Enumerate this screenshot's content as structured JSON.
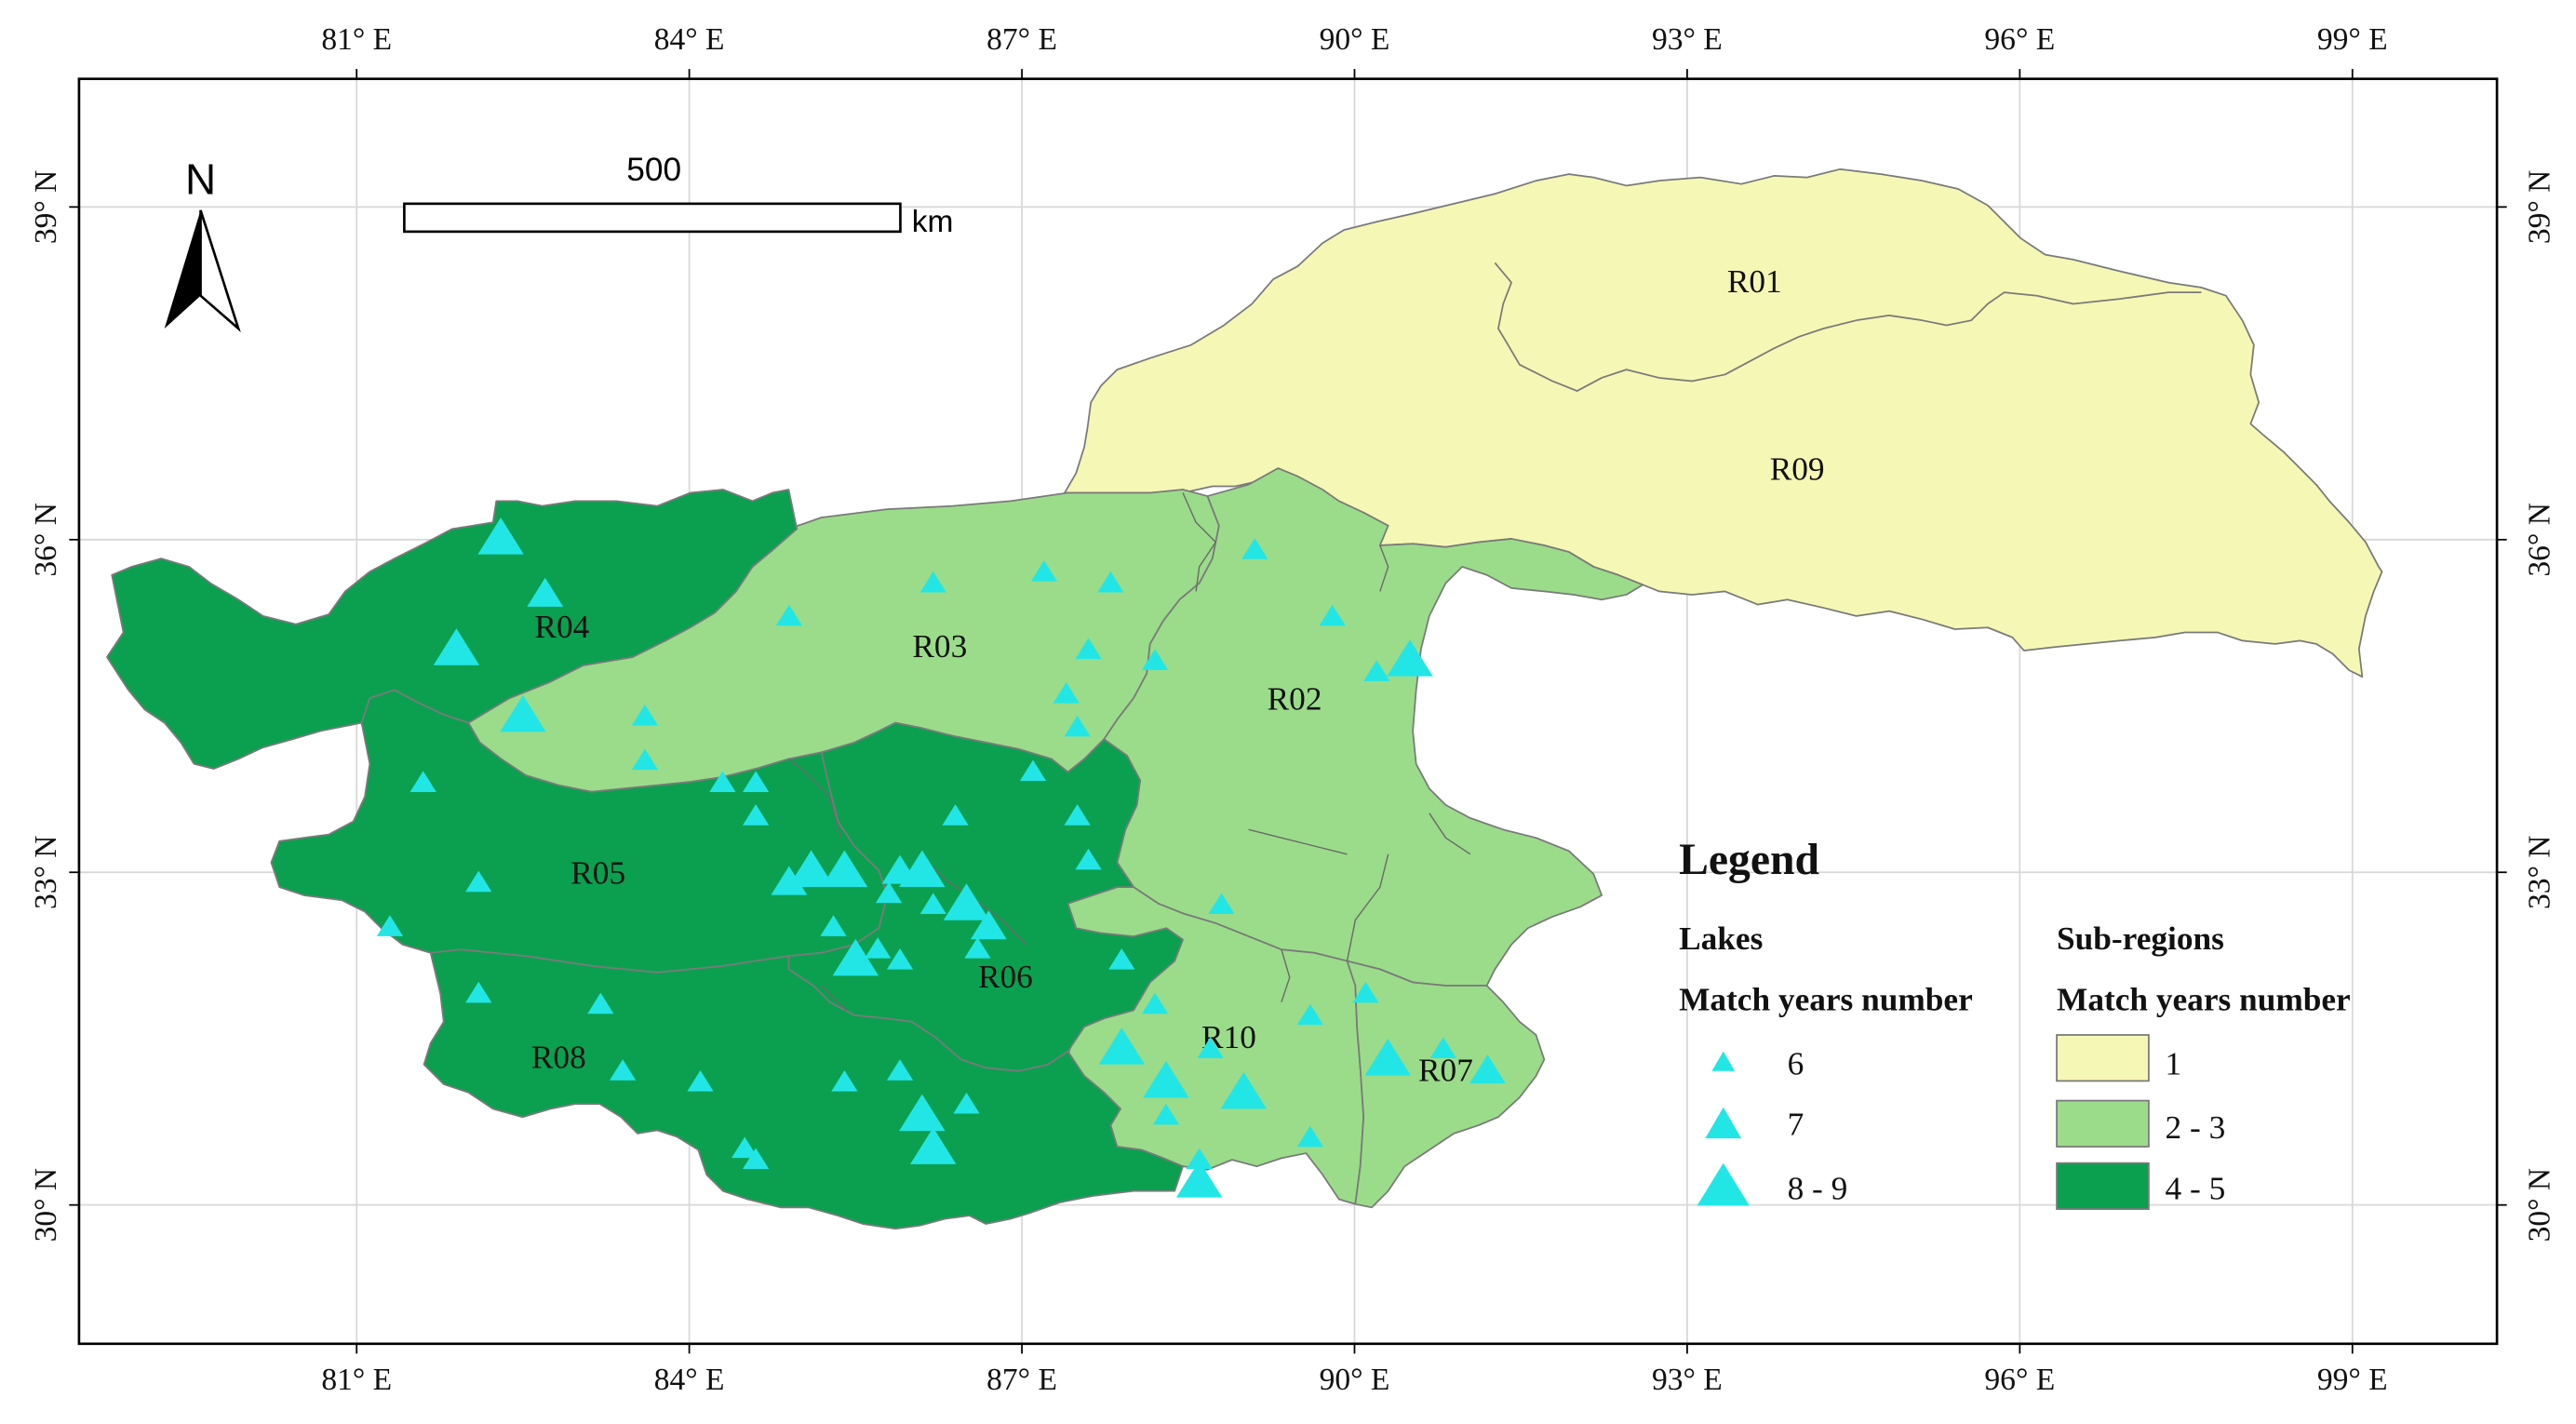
{
  "map": {
    "colors": {
      "class_1": "#f5f7b5",
      "class_2_3": "#9bdc8a",
      "class_4_5": "#0aa050",
      "lake": "#22e6e6",
      "border": "#7a7a7a",
      "frame": "#000000",
      "grid": "#d8d8d8"
    },
    "graticule": {
      "lon_labels": [
        "81° E",
        "84° E",
        "87° E",
        "90° E",
        "93° E",
        "96° E",
        "99° E"
      ],
      "lat_labels": [
        "39° N",
        "36° N",
        "33° N",
        "30° N"
      ]
    },
    "north_arrow": {
      "label": "N"
    },
    "scale_bar": {
      "value_label": "500",
      "unit_label": "km"
    },
    "regions": [
      {
        "id": "R01",
        "label": "R01",
        "class": "1"
      },
      {
        "id": "R09",
        "label": "R09",
        "class": "1"
      },
      {
        "id": "R03",
        "label": "R03",
        "class": "2 - 3"
      },
      {
        "id": "R02",
        "label": "R02",
        "class": "2 - 3"
      },
      {
        "id": "R10",
        "label": "R10",
        "class": "2 - 3"
      },
      {
        "id": "R07",
        "label": "R07",
        "class": "2 - 3"
      },
      {
        "id": "R04",
        "label": "R04",
        "class": "4 - 5"
      },
      {
        "id": "R05",
        "label": "R05",
        "class": "4 - 5"
      },
      {
        "id": "R06",
        "label": "R06",
        "class": "4 - 5"
      },
      {
        "id": "R08",
        "label": "R08",
        "class": "4 - 5"
      }
    ],
    "legend": {
      "title": "Legend",
      "lakes_heading": "Lakes",
      "lakes_subheading": "Match years number",
      "lake_classes": [
        "6",
        "7",
        "8 - 9"
      ],
      "subregions_heading": "Sub-regions",
      "subregions_subheading": "Match years number",
      "subregion_classes": [
        "1",
        "2 - 3",
        "4 - 5"
      ]
    },
    "lakes": [
      {
        "lon": 82.3,
        "lat": 36.0,
        "class": "8 - 9"
      },
      {
        "lon": 82.7,
        "lat": 35.5,
        "class": "7"
      },
      {
        "lon": 81.9,
        "lat": 35.0,
        "class": "8 - 9"
      },
      {
        "lon": 82.5,
        "lat": 34.4,
        "class": "8 - 9"
      },
      {
        "lon": 83.6,
        "lat": 34.4,
        "class": "6"
      },
      {
        "lon": 83.6,
        "lat": 34.0,
        "class": "6"
      },
      {
        "lon": 81.6,
        "lat": 33.8,
        "class": "6"
      },
      {
        "lon": 84.3,
        "lat": 33.8,
        "class": "6"
      },
      {
        "lon": 84.6,
        "lat": 33.8,
        "class": "6"
      },
      {
        "lon": 84.6,
        "lat": 33.5,
        "class": "6"
      },
      {
        "lon": 82.1,
        "lat": 32.9,
        "class": "6"
      },
      {
        "lon": 81.3,
        "lat": 32.5,
        "class": "6"
      },
      {
        "lon": 84.9,
        "lat": 35.3,
        "class": "6"
      },
      {
        "lon": 86.2,
        "lat": 35.6,
        "class": "6"
      },
      {
        "lon": 87.2,
        "lat": 35.7,
        "class": "6"
      },
      {
        "lon": 87.8,
        "lat": 35.6,
        "class": "6"
      },
      {
        "lon": 87.6,
        "lat": 35.0,
        "class": "6"
      },
      {
        "lon": 87.4,
        "lat": 34.6,
        "class": "6"
      },
      {
        "lon": 87.5,
        "lat": 34.3,
        "class": "6"
      },
      {
        "lon": 88.2,
        "lat": 34.9,
        "class": "6"
      },
      {
        "lon": 89.1,
        "lat": 35.9,
        "class": "6"
      },
      {
        "lon": 89.8,
        "lat": 35.3,
        "class": "6"
      },
      {
        "lon": 90.2,
        "lat": 34.8,
        "class": "6"
      },
      {
        "lon": 90.5,
        "lat": 34.9,
        "class": "8 - 9"
      },
      {
        "lon": 87.1,
        "lat": 33.9,
        "class": "6"
      },
      {
        "lon": 86.4,
        "lat": 33.5,
        "class": "6"
      },
      {
        "lon": 87.5,
        "lat": 33.5,
        "class": "6"
      },
      {
        "lon": 87.6,
        "lat": 33.1,
        "class": "6"
      },
      {
        "lon": 85.1,
        "lat": 33.0,
        "class": "8 - 9"
      },
      {
        "lon": 85.4,
        "lat": 33.0,
        "class": "8 - 9"
      },
      {
        "lon": 84.9,
        "lat": 32.9,
        "class": "7"
      },
      {
        "lon": 85.9,
        "lat": 33.0,
        "class": "7"
      },
      {
        "lon": 86.1,
        "lat": 33.0,
        "class": "8 - 9"
      },
      {
        "lon": 85.8,
        "lat": 32.8,
        "class": "6"
      },
      {
        "lon": 86.2,
        "lat": 32.7,
        "class": "6"
      },
      {
        "lon": 86.5,
        "lat": 32.7,
        "class": "8 - 9"
      },
      {
        "lon": 86.7,
        "lat": 32.5,
        "class": "7"
      },
      {
        "lon": 85.3,
        "lat": 32.5,
        "class": "6"
      },
      {
        "lon": 85.7,
        "lat": 32.3,
        "class": "6"
      },
      {
        "lon": 85.5,
        "lat": 32.2,
        "class": "8 - 9"
      },
      {
        "lon": 85.9,
        "lat": 32.2,
        "class": "6"
      },
      {
        "lon": 86.6,
        "lat": 32.3,
        "class": "6"
      },
      {
        "lon": 82.1,
        "lat": 31.9,
        "class": "6"
      },
      {
        "lon": 83.2,
        "lat": 31.8,
        "class": "6"
      },
      {
        "lon": 83.4,
        "lat": 31.2,
        "class": "6"
      },
      {
        "lon": 84.1,
        "lat": 31.1,
        "class": "6"
      },
      {
        "lon": 85.4,
        "lat": 31.1,
        "class": "6"
      },
      {
        "lon": 85.9,
        "lat": 31.2,
        "class": "6"
      },
      {
        "lon": 86.1,
        "lat": 30.8,
        "class": "8 - 9"
      },
      {
        "lon": 86.5,
        "lat": 30.9,
        "class": "6"
      },
      {
        "lon": 86.2,
        "lat": 30.5,
        "class": "8 - 9"
      },
      {
        "lon": 84.5,
        "lat": 30.5,
        "class": "6"
      },
      {
        "lon": 84.6,
        "lat": 30.4,
        "class": "6"
      },
      {
        "lon": 87.9,
        "lat": 32.2,
        "class": "6"
      },
      {
        "lon": 88.2,
        "lat": 31.8,
        "class": "6"
      },
      {
        "lon": 87.9,
        "lat": 31.4,
        "class": "8 - 9"
      },
      {
        "lon": 88.8,
        "lat": 32.7,
        "class": "6"
      },
      {
        "lon": 88.7,
        "lat": 31.4,
        "class": "6"
      },
      {
        "lon": 88.3,
        "lat": 31.1,
        "class": "8 - 9"
      },
      {
        "lon": 88.3,
        "lat": 30.8,
        "class": "6"
      },
      {
        "lon": 89.0,
        "lat": 31.0,
        "class": "8 - 9"
      },
      {
        "lon": 89.6,
        "lat": 31.7,
        "class": "6"
      },
      {
        "lon": 90.1,
        "lat": 31.9,
        "class": "6"
      },
      {
        "lon": 89.6,
        "lat": 30.6,
        "class": "6"
      },
      {
        "lon": 88.6,
        "lat": 30.4,
        "class": "6"
      },
      {
        "lon": 88.6,
        "lat": 30.2,
        "class": "8 - 9"
      },
      {
        "lon": 90.3,
        "lat": 31.3,
        "class": "8 - 9"
      },
      {
        "lon": 90.8,
        "lat": 31.4,
        "class": "6"
      },
      {
        "lon": 91.2,
        "lat": 31.2,
        "class": "7"
      }
    ]
  }
}
